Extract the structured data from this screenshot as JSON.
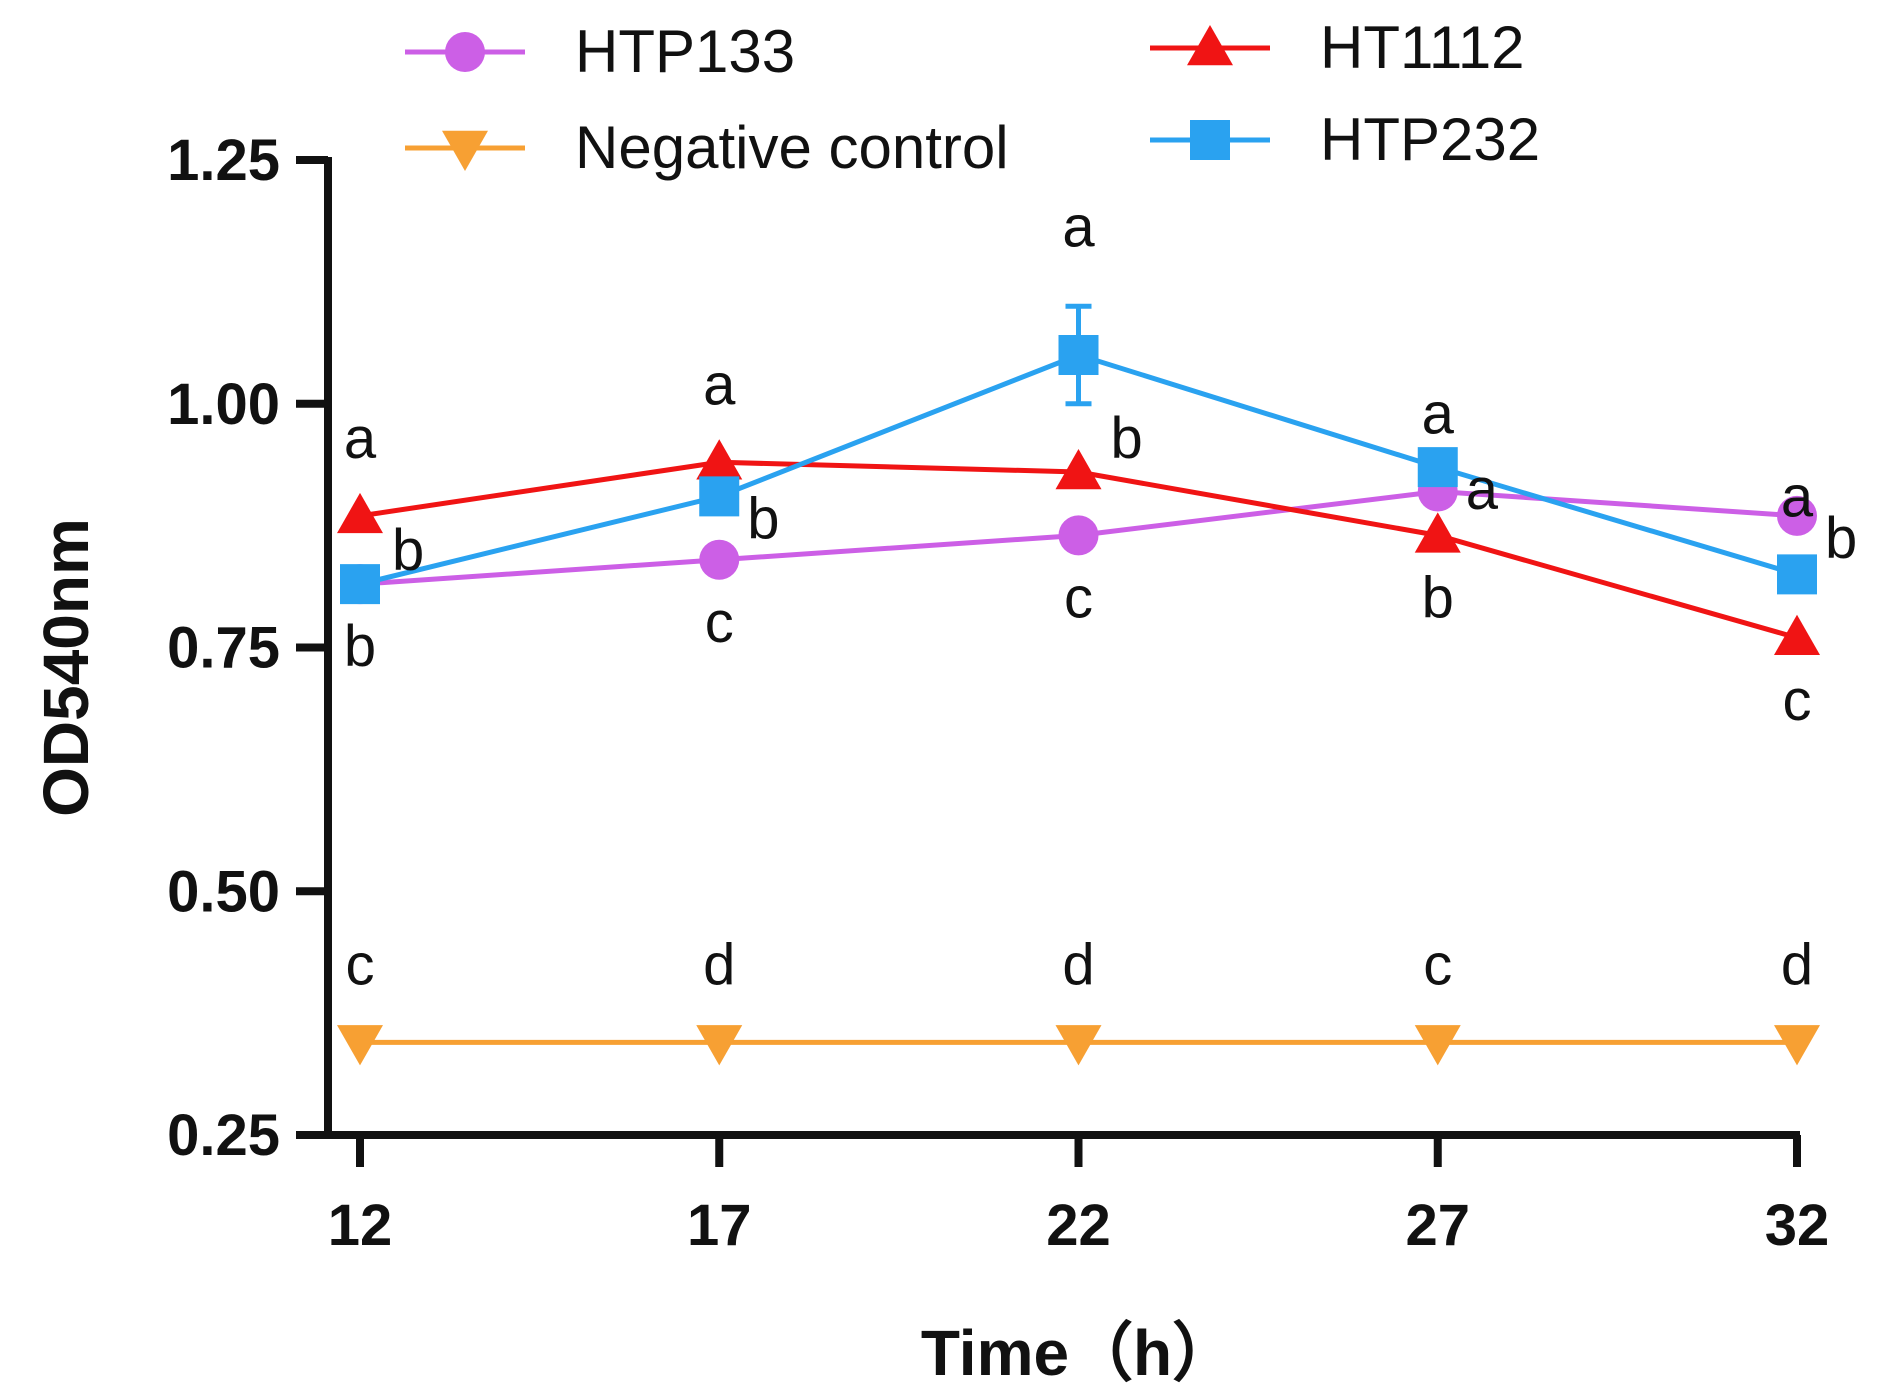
{
  "chart_data": {
    "type": "line",
    "title": "",
    "xlabel": "Time（h）",
    "ylabel": "OD540nm",
    "x": [
      12,
      17,
      22,
      27,
      32
    ],
    "x_tick_labels": [
      "12",
      "17",
      "22",
      "27",
      "32"
    ],
    "y_ticks": [
      0.25,
      0.5,
      0.75,
      1.0,
      1.25
    ],
    "y_tick_labels": [
      "0.25",
      "0.50",
      "0.75",
      "1.00",
      "1.25"
    ],
    "xlim": [
      12,
      32
    ],
    "ylim": [
      0.25,
      1.25
    ],
    "grid": false,
    "legend_position": "top",
    "series": [
      {
        "name": "HTP133",
        "color": "#cc5fe6",
        "marker": "circle",
        "values": [
          0.815,
          0.84,
          0.865,
          0.91,
          0.885
        ],
        "errors": [
          0,
          0,
          0,
          0,
          0
        ],
        "sig": [
          "b",
          "c",
          "c",
          "a",
          "b"
        ],
        "sig_pos": [
          "below",
          "below",
          "below",
          "above",
          "right"
        ]
      },
      {
        "name": "HT1112",
        "color": "#f01414",
        "marker": "triangle-up",
        "values": [
          0.885,
          0.94,
          0.93,
          0.865,
          0.76
        ],
        "errors": [
          0,
          0,
          0,
          0,
          0
        ],
        "sig": [
          "a",
          "a",
          "b",
          "b",
          "c"
        ],
        "sig_pos": [
          "above",
          "above",
          "above-right",
          "below",
          "below"
        ]
      },
      {
        "name": "Negative control",
        "color": "#f7a033",
        "marker": "triangle-down",
        "values": [
          0.345,
          0.345,
          0.345,
          0.345,
          0.345
        ],
        "errors": [
          0,
          0,
          0,
          0,
          0
        ],
        "sig": [
          "c",
          "d",
          "d",
          "c",
          "d"
        ],
        "sig_pos": [
          "above",
          "above",
          "above",
          "above",
          "above"
        ]
      },
      {
        "name": "HTP232",
        "color": "#2aa2f0",
        "marker": "square",
        "values": [
          0.815,
          0.905,
          1.05,
          0.935,
          0.825
        ],
        "errors": [
          0,
          0,
          0.05,
          0,
          0
        ],
        "sig": [
          "b",
          "b",
          "a",
          "a",
          "a"
        ],
        "sig_pos": [
          "above-right",
          "right",
          "above",
          "right",
          "above"
        ]
      }
    ]
  }
}
